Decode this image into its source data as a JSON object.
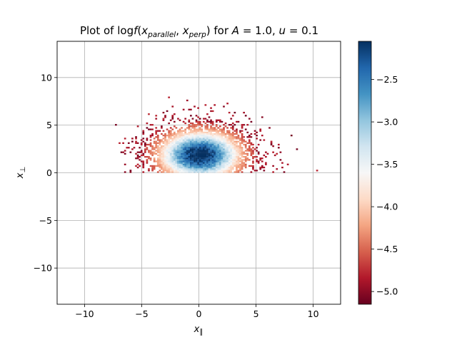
{
  "chart_data": {
    "type": "heatmap",
    "title": {
      "prefix": "Plot of log",
      "func": "f",
      "open": "(",
      "var1": "x",
      "var1_sub": "parallel",
      "sep": ", ",
      "var2": "x",
      "var2_sub": "perp",
      "close": ")",
      "mid": " for ",
      "p1_name": "A",
      "p1_value": " = 1.0, ",
      "p2_name": "u",
      "p2_value": " = 0.1"
    },
    "xlabel": {
      "symbol": "x",
      "sub": "∥"
    },
    "ylabel": {
      "symbol": "x",
      "sub": "⊥"
    },
    "xlim": [
      -12.4,
      12.4
    ],
    "ylim": [
      -13.8,
      13.8
    ],
    "x_ticks": [
      {
        "value": -10,
        "label": "−10"
      },
      {
        "value": -5,
        "label": "−5"
      },
      {
        "value": 0,
        "label": "0"
      },
      {
        "value": 5,
        "label": "5"
      },
      {
        "value": 10,
        "label": "10"
      }
    ],
    "y_ticks": [
      {
        "value": -10,
        "label": "−10"
      },
      {
        "value": -5,
        "label": "−5"
      },
      {
        "value": 0,
        "label": "0"
      },
      {
        "value": 5,
        "label": "5"
      },
      {
        "value": 10,
        "label": "10"
      }
    ],
    "grid": true,
    "colormap": "RdBu",
    "color_range": [
      -5.15,
      -2.05
    ],
    "colorbar_ticks": [
      {
        "value": -2.5,
        "label": "−2.5"
      },
      {
        "value": -3.0,
        "label": "−3.0"
      },
      {
        "value": -3.5,
        "label": "−3.5"
      },
      {
        "value": -4.0,
        "label": "−4.0"
      },
      {
        "value": -4.5,
        "label": "−4.5"
      },
      {
        "value": -5.0,
        "label": "−5.0"
      }
    ],
    "distribution": {
      "center_x": 0.0,
      "center_y": 1.8,
      "sigma_x": 2.4,
      "sigma_y": 1.7,
      "x_bin_width": 0.16,
      "y_bin_height": 0.16,
      "y_min": 0,
      "outer_extent_x": 11.5,
      "outer_extent_y": 13.6
    }
  }
}
